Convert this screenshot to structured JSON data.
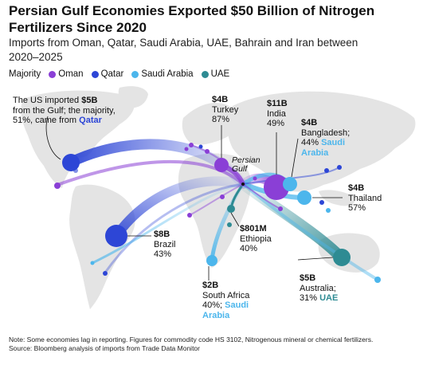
{
  "title": "Persian Gulf Economies Exported $50 Billion of Nitrogen Fertilizers Since 2020",
  "subtitle": "Imports from Oman, Qatar, Saudi Arabia, UAE, Bahrain and Iran between 2020–2025",
  "legend": {
    "heading": "Majority",
    "items": [
      {
        "label": "Oman",
        "color": "#8a3fd6"
      },
      {
        "label": "Qatar",
        "color": "#2d46d6"
      },
      {
        "label": "Saudi Arabia",
        "color": "#4cb6ec"
      },
      {
        "label": "UAE",
        "color": "#2e8b93"
      }
    ]
  },
  "colors": {
    "Oman": "#8a3fd6",
    "Qatar": "#2d46d6",
    "Saudi Arabia": "#4cb6ec",
    "UAE": "#2e8b93",
    "land": "#e4e4e4"
  },
  "origin_label": "Persian Gulf",
  "us_annotation": {
    "line1_pre": "The US imported ",
    "line1_val": "$5B",
    "line2": "from the Gulf; the majority,",
    "line3_pre": "51%, came from ",
    "line3_src": "Qatar"
  },
  "labels": {
    "turkey": {
      "value": "$4B",
      "name": "Turkey",
      "pct": "87%"
    },
    "india": {
      "value": "$11B",
      "name": "India",
      "pct": "49%"
    },
    "bangladesh": {
      "value": "$4B",
      "name": "Bangladesh;",
      "pct": "44%",
      "source": "Saudi Arabia"
    },
    "thailand": {
      "value": "$4B",
      "name": "Thailand",
      "pct": "57%"
    },
    "brazil": {
      "value": "$8B",
      "name": "Brazil",
      "pct": "43%"
    },
    "ethiopia": {
      "value": "$801M",
      "name": "Ethiopia",
      "pct": "40%"
    },
    "south_africa": {
      "value": "$2B",
      "name": "South Africa",
      "pct": "40%;",
      "source": "Saudi Arabia"
    },
    "australia": {
      "value": "$5B",
      "name": "Australia;",
      "pct": "31%",
      "source": "UAE"
    }
  },
  "chart_data": {
    "type": "flow-map",
    "origin": "Persian Gulf",
    "unit": "USD",
    "flows": [
      {
        "destination": "United States",
        "value_usd_bn": 5,
        "majority": "Qatar",
        "majority_share_pct": 51
      },
      {
        "destination": "Turkey",
        "value_usd_bn": 4,
        "majority": "Oman",
        "majority_share_pct": 87
      },
      {
        "destination": "India",
        "value_usd_bn": 11,
        "majority": "Oman",
        "majority_share_pct": 49
      },
      {
        "destination": "Bangladesh",
        "value_usd_bn": 4,
        "majority": "Saudi Arabia",
        "majority_share_pct": 44
      },
      {
        "destination": "Thailand",
        "value_usd_bn": 4,
        "majority": "Saudi Arabia",
        "majority_share_pct": 57
      },
      {
        "destination": "Brazil",
        "value_usd_bn": 8,
        "majority": "Qatar",
        "majority_share_pct": 43
      },
      {
        "destination": "Ethiopia",
        "value_usd_bn": 0.801,
        "majority": "UAE",
        "majority_share_pct": 40
      },
      {
        "destination": "South Africa",
        "value_usd_bn": 2,
        "majority": "Saudi Arabia",
        "majority_share_pct": 40
      },
      {
        "destination": "Australia",
        "value_usd_bn": 5,
        "majority": "UAE",
        "majority_share_pct": 31
      }
    ]
  },
  "notes": [
    "Note: Some economies lag in reporting. Figures for commodity code HS 3102, Nitrogenous mineral or chemical fertilizers.",
    "Source: Bloomberg analysis of imports from Trade Data Monitor"
  ]
}
